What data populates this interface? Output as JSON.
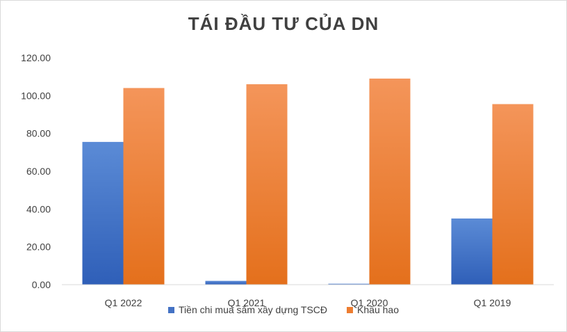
{
  "chart_data": {
    "type": "bar",
    "title": "TÁI ĐẦU TƯ CỦA DN",
    "categories": [
      "Q1 2022",
      "Q1 2021",
      "Q1 2020",
      "Q1 2019"
    ],
    "series": [
      {
        "name": "Tiền chi mua sắm xây dựng TSCĐ",
        "color": "#4472c4",
        "values": [
          75.5,
          2.0,
          0.5,
          35.0
        ]
      },
      {
        "name": "Khấu hao",
        "color": "#ed7d31",
        "values": [
          104.0,
          106.0,
          109.0,
          95.5
        ]
      }
    ],
    "yticks": [
      "0.00",
      "20.00",
      "40.00",
      "60.00",
      "80.00",
      "100.00",
      "120.00"
    ],
    "ylim": [
      0,
      120
    ],
    "grid": false,
    "legend_position": "bottom"
  }
}
